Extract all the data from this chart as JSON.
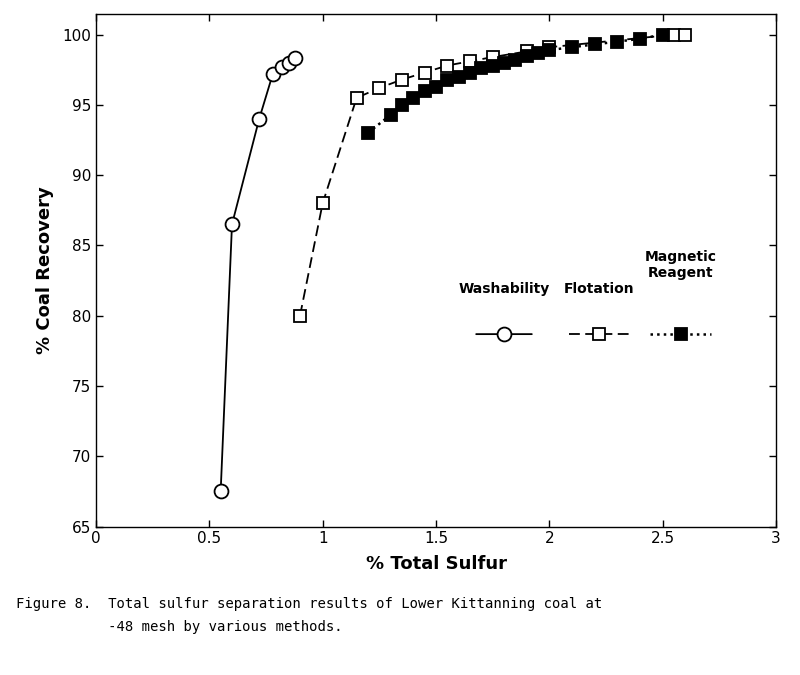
{
  "washability_x": [
    0.55,
    0.6,
    0.72,
    0.78,
    0.82,
    0.85,
    0.88
  ],
  "washability_y": [
    67.5,
    86.5,
    94.0,
    97.2,
    97.7,
    98.0,
    98.3
  ],
  "flotation_x": [
    0.9,
    1.0,
    1.15,
    1.25,
    1.35,
    1.45,
    1.55,
    1.65,
    1.75,
    1.9,
    2.0,
    2.55,
    2.6
  ],
  "flotation_y": [
    80.0,
    88.0,
    95.5,
    96.2,
    96.8,
    97.3,
    97.8,
    98.1,
    98.4,
    98.8,
    99.1,
    100.0,
    100.0
  ],
  "magnetic_x": [
    1.2,
    1.3,
    1.35,
    1.4,
    1.45,
    1.5,
    1.55,
    1.6,
    1.65,
    1.7,
    1.75,
    1.8,
    1.85,
    1.9,
    1.95,
    2.0,
    2.1,
    2.2,
    2.3,
    2.4,
    2.5
  ],
  "magnetic_y": [
    93.0,
    94.3,
    95.0,
    95.5,
    96.0,
    96.3,
    96.8,
    97.0,
    97.3,
    97.6,
    97.8,
    98.0,
    98.2,
    98.5,
    98.7,
    98.9,
    99.1,
    99.3,
    99.5,
    99.7,
    100.0
  ],
  "xlim": [
    0,
    3
  ],
  "ylim": [
    65,
    101.5
  ],
  "xlabel": "% Total Sulfur",
  "ylabel": "% Coal Recovery",
  "xticks": [
    0,
    0.5,
    1.0,
    1.5,
    2.0,
    2.5,
    3.0
  ],
  "xtick_labels": [
    "0",
    "0.5",
    "1",
    "1.5",
    "2",
    "2.5",
    "3"
  ],
  "yticks": [
    65,
    70,
    75,
    80,
    85,
    90,
    95,
    100
  ],
  "legend_label_wash": "Washability",
  "legend_label_flot": "Flotation",
  "legend_label_mag": "Magnetic\nReagent",
  "caption_line1": "Figure 8.  Total sulfur separation results of Lower Kittanning coal at",
  "caption_line2": "           -48 mesh by various methods.",
  "line_color": "black",
  "bg_color": "white"
}
